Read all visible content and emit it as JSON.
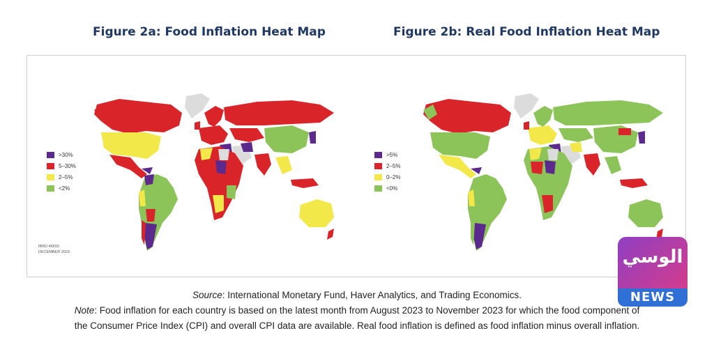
{
  "figures": {
    "a": {
      "title": "Figure 2a: Food Inflation Heat Map",
      "legend": [
        {
          "label": ">30%",
          "color": "#5b2a8c"
        },
        {
          "label": "5–30%",
          "color": "#d9252a"
        },
        {
          "label": "2–5%",
          "color": "#f2e84a"
        },
        {
          "label": "<2%",
          "color": "#8dc45a"
        }
      ],
      "ibrd_id": "IBRD 46693",
      "ibrd_date": "DECEMBER 2023"
    },
    "b": {
      "title": "Figure 2b: Real Food Inflation Heat Map",
      "legend": [
        {
          "label": ">5%",
          "color": "#5b2a8c"
        },
        {
          "label": "2–5%",
          "color": "#d9252a"
        },
        {
          "label": "0–2%",
          "color": "#f2e84a"
        },
        {
          "label": "<0%",
          "color": "#8dc45a"
        }
      ]
    }
  },
  "no_data_color": "#dcdcdc",
  "caption": {
    "source_label": "Source",
    "source_text": ": International Monetary Fund, Haver Analytics, and Trading Economics.",
    "note_label": "Note",
    "note_text_1": ": Food inflation for each country is based on the latest month from August 2023 to November 2023 for which the food component of",
    "note_text_2": "the Consumer Price Index (CPI) and overall CPI data are available. Real food inflation is defined as food inflation minus overall inflation."
  },
  "watermark": {
    "arabic": "الوسي",
    "brand": "NEWS"
  }
}
